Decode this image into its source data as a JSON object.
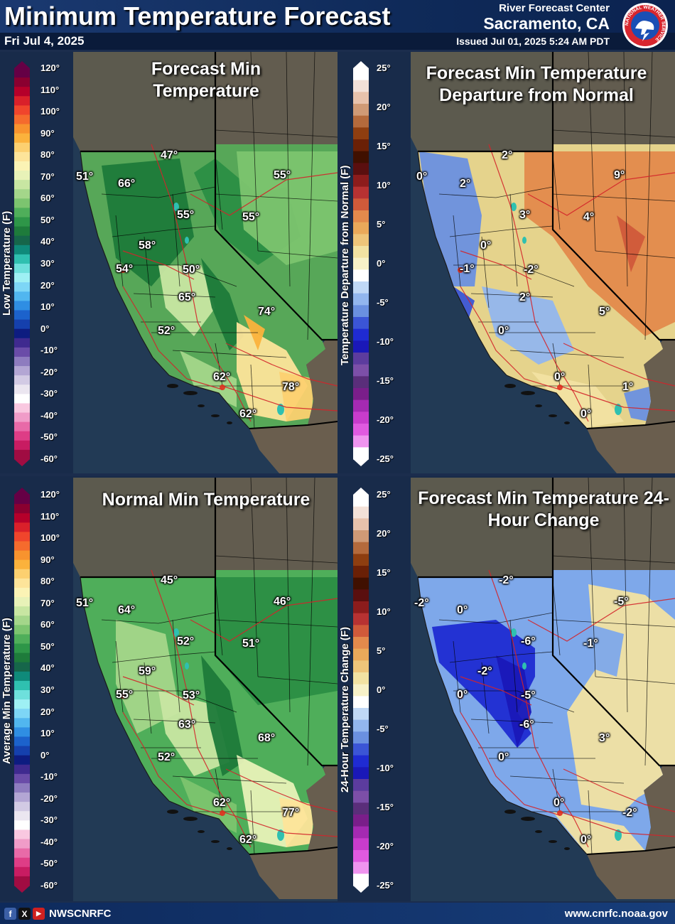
{
  "header": {
    "title": "Minimum Temperature Forecast",
    "date": "Fri Jul 4, 2025",
    "rfc": "River Forecast Center",
    "city": "Sacramento, CA",
    "issued": "Issued Jul 01, 2025 5:24 AM PDT",
    "logo_text": "NATIONAL WEATHER SERVICE"
  },
  "colorbars": {
    "temp_top": {
      "title": "Low Temperature (F)",
      "ticks": [
        "120°",
        "110°",
        "100°",
        "90°",
        "80°",
        "70°",
        "60°",
        "50°",
        "40°",
        "30°",
        "20°",
        "10°",
        "0°",
        "-10°",
        "-20°",
        "-30°",
        "-40°",
        "-50°",
        "-60°"
      ],
      "colors": [
        "#650045",
        "#8a0030",
        "#b5002a",
        "#d9202a",
        "#f0452c",
        "#f56b2d",
        "#f8932e",
        "#fbb23c",
        "#fcd070",
        "#fde49a",
        "#fbf3b5",
        "#e8f2b8",
        "#c8e6a2",
        "#a4d68a",
        "#7cc46f",
        "#4fae5a",
        "#2e9648",
        "#1e7b3b",
        "#16664a",
        "#0f8a7a",
        "#2fc0b0",
        "#6ee0dc",
        "#9ef0f4",
        "#7dd6f6",
        "#51b6ef",
        "#2f8ee3",
        "#1c62cc",
        "#1540ad",
        "#0d1c80",
        "#3f2a8f",
        "#6a4ca8",
        "#8e7cbf",
        "#b3a6d4",
        "#d2cae4",
        "#ebe6f0",
        "#ffffff",
        "#f9c8e0",
        "#f09cc8",
        "#e86aa8",
        "#de3d86",
        "#c81c62",
        "#a00c42"
      ]
    },
    "dep_top": {
      "title": "Temperature Departure from Normal (F)",
      "ticks": [
        "25°",
        "20°",
        "15°",
        "10°",
        "5°",
        "0°",
        "-5°",
        "-10°",
        "-15°",
        "-20°",
        "-25°"
      ]
    },
    "temp_bottom": {
      "title": "Average Min Temperature (F)",
      "ticks": [
        "120°",
        "110°",
        "100°",
        "90°",
        "80°",
        "70°",
        "60°",
        "50°",
        "40°",
        "30°",
        "20°",
        "10°",
        "0°",
        "-10°",
        "-20°",
        "-30°",
        "-40°",
        "-50°",
        "-60°"
      ]
    },
    "change_bottom": {
      "title": "24-Hour Temperature Change (F)",
      "ticks": [
        "25°",
        "20°",
        "15°",
        "10°",
        "5°",
        "0°",
        "-5°",
        "-10°",
        "-15°",
        "-20°",
        "-25°"
      ]
    },
    "diverging_colors": [
      "#ffffff",
      "#f3e1d8",
      "#e7c2ac",
      "#cf9a76",
      "#b46a3c",
      "#8e3e10",
      "#6a2006",
      "#401000",
      "#5a0f0f",
      "#8c1c1c",
      "#b73232",
      "#d05a3a",
      "#e38a4c",
      "#eaa95a",
      "#eec57a",
      "#f2e2a2",
      "#f7f1c8",
      "#ffffff",
      "#c0d8f6",
      "#92b6ee",
      "#6a90e0",
      "#3b55d6",
      "#1f2bd2",
      "#1a18b8",
      "#5c3c9e",
      "#7c4fa8",
      "#5a2e7a",
      "#7a1e8a",
      "#a42ab2",
      "#c83ccc",
      "#e05ae0",
      "#ef94ef",
      "#ffffff"
    ]
  },
  "panels": {
    "forecast": {
      "title": "Forecast Min Temperature",
      "labels": [
        {
          "text": "51°"
        },
        {
          "text": "47°"
        },
        {
          "text": "55°"
        },
        {
          "text": "66°"
        },
        {
          "text": "55°"
        },
        {
          "text": "55°"
        },
        {
          "text": "58°"
        },
        {
          "text": "54°"
        },
        {
          "text": "50°"
        },
        {
          "text": "65°"
        },
        {
          "text": "74°"
        },
        {
          "text": "52°"
        },
        {
          "text": "62°"
        },
        {
          "text": "78°"
        },
        {
          "text": "62°"
        }
      ]
    },
    "departure": {
      "title": "Forecast Min Temperature Departure from Normal",
      "labels": [
        {
          "text": "0°"
        },
        {
          "text": "2°"
        },
        {
          "text": "9°"
        },
        {
          "text": "2°"
        },
        {
          "text": "3°"
        },
        {
          "text": "4°"
        },
        {
          "text": "0°"
        },
        {
          "text": "-1°"
        },
        {
          "text": "-2°"
        },
        {
          "text": "2°"
        },
        {
          "text": "5°"
        },
        {
          "text": "0°"
        },
        {
          "text": "0°"
        },
        {
          "text": "1°"
        },
        {
          "text": "0°"
        }
      ]
    },
    "normal": {
      "title": "Normal Min Temperature",
      "labels": [
        {
          "text": "51°"
        },
        {
          "text": "45°"
        },
        {
          "text": "46°"
        },
        {
          "text": "64°"
        },
        {
          "text": "52°"
        },
        {
          "text": "51°"
        },
        {
          "text": "59°"
        },
        {
          "text": "55°"
        },
        {
          "text": "53°"
        },
        {
          "text": "63°"
        },
        {
          "text": "68°"
        },
        {
          "text": "52°"
        },
        {
          "text": "62°"
        },
        {
          "text": "77°"
        },
        {
          "text": "62°"
        }
      ]
    },
    "change": {
      "title": "Forecast Min Temperature 24-Hour Change",
      "labels": [
        {
          "text": "-2°"
        },
        {
          "text": "-2°"
        },
        {
          "text": "-5°"
        },
        {
          "text": "0°"
        },
        {
          "text": "-6°"
        },
        {
          "text": "-1°"
        },
        {
          "text": "-2°"
        },
        {
          "text": "0°"
        },
        {
          "text": "-5°"
        },
        {
          "text": "-6°"
        },
        {
          "text": "3°"
        },
        {
          "text": "0°"
        },
        {
          "text": "0°"
        },
        {
          "text": "-2°"
        },
        {
          "text": "0°"
        }
      ]
    }
  },
  "footer": {
    "handle": "NWSCNRFC",
    "url": "www.cnrfc.noaa.gov",
    "social": [
      "f",
      "X",
      "▶"
    ]
  }
}
